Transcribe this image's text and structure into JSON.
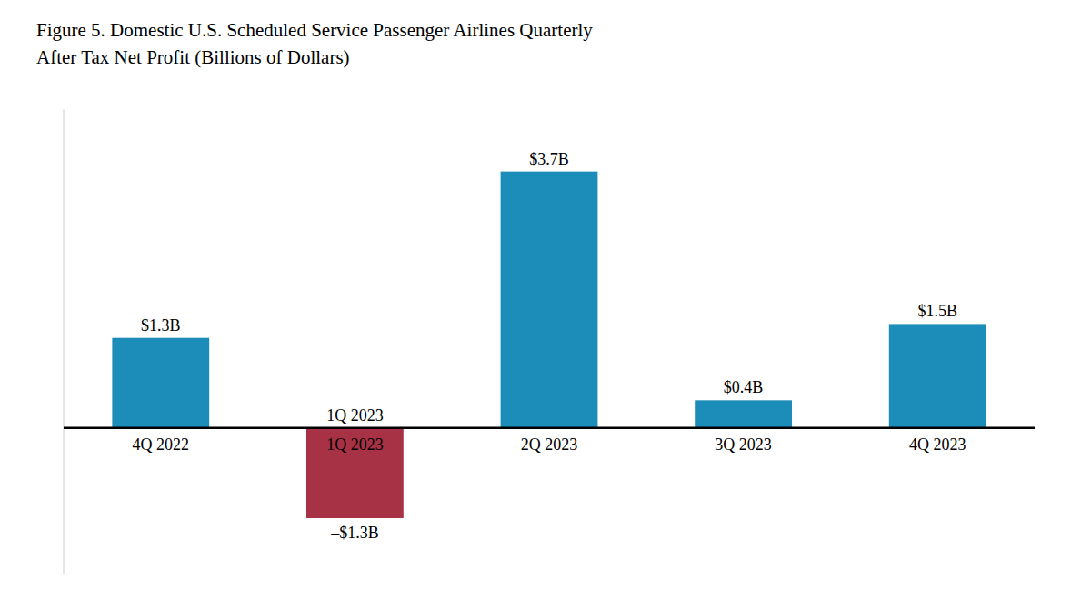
{
  "chart_data": {
    "type": "bar",
    "title": "Figure 5. Domestic U.S. Scheduled Service Passenger Airlines Quarterly",
    "subtitle": "After Tax Net Profit (Billions of Dollars)",
    "categories": [
      "4Q 2022",
      "1Q 2023",
      "2Q 2023",
      "3Q 2023",
      "4Q 2023"
    ],
    "values": [
      1.3,
      -1.3,
      3.7,
      0.4,
      1.5
    ],
    "value_labels": [
      "$1.3B",
      "–$1.3B",
      "$3.7B",
      "$0.4B",
      "$1.5B"
    ],
    "colors": [
      "#1c8db8",
      "#a83245",
      "#1c8db8",
      "#1c8db8",
      "#1c8db8"
    ],
    "ylim": [
      -2.1,
      4.6
    ],
    "grid": false,
    "tick_labels": "x",
    "data_labels": true,
    "annotations": [
      {
        "text": "1Q 2023",
        "x": "1Q 2023"
      }
    ]
  }
}
